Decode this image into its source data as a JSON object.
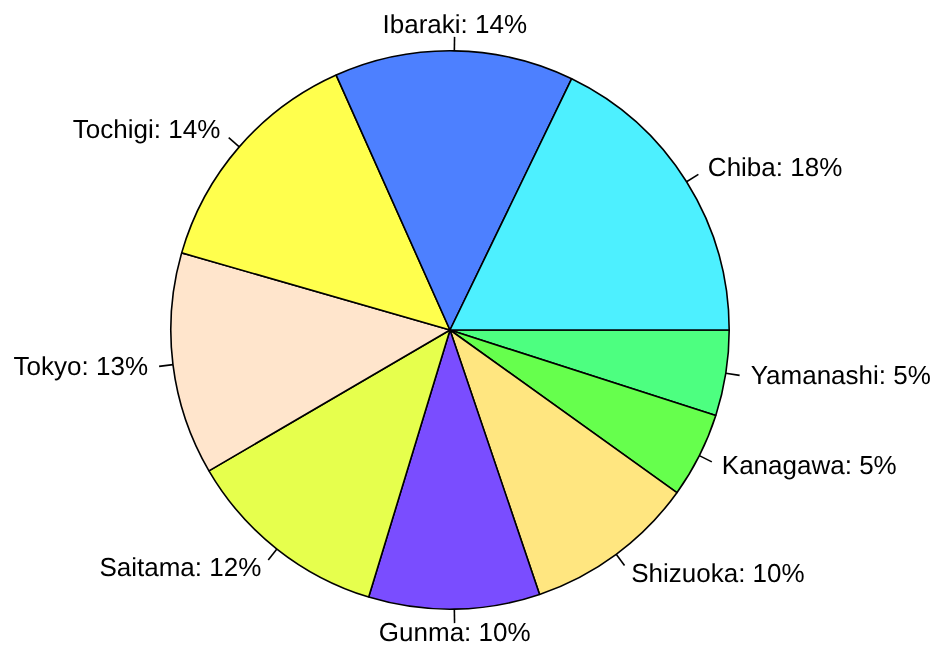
{
  "chart_data": {
    "type": "pie",
    "categories": [
      "Yamanashi",
      "Kanagawa",
      "Shizuoka",
      "Gunma",
      "Saitama",
      "Tokyo",
      "Tochigi",
      "Ibaraki",
      "Chiba"
    ],
    "values": [
      5,
      5,
      10,
      10,
      12,
      13,
      14,
      14,
      18
    ],
    "value_labels": [
      "5%",
      "5%",
      "10%",
      "10%",
      "12%",
      "13%",
      "14%",
      "14%",
      "18%"
    ],
    "colors": [
      "#4dff80",
      "#66ff4d",
      "#ffe680",
      "#7a4dff",
      "#e6ff4d",
      "#ffe5cc",
      "#ffff4d",
      "#4d80ff",
      "#4df0ff"
    ],
    "legend": false
  }
}
